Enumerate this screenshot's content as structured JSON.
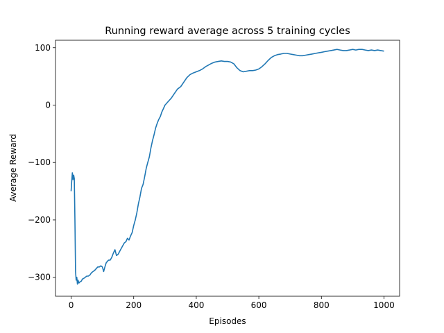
{
  "chart_data": {
    "type": "line",
    "title": "Running reward average across 5 training cycles",
    "xlabel": "Episodes",
    "ylabel": "Average Reward",
    "xlim": [
      -50,
      1050
    ],
    "ylim": [
      -333,
      113
    ],
    "xticks": [
      0,
      200,
      400,
      600,
      800,
      1000
    ],
    "yticks": [
      -300,
      -200,
      -100,
      0,
      100
    ],
    "grid": false,
    "legend": "none",
    "line_color": "#1f77b4",
    "series": [
      {
        "x": [
          0,
          2,
          4,
          6,
          8,
          10,
          12,
          14,
          16,
          18,
          20,
          22,
          25,
          28,
          32,
          36,
          40,
          45,
          50,
          55,
          60,
          65,
          70,
          75,
          80,
          85,
          90,
          95,
          100,
          104,
          108,
          112,
          116,
          120,
          125,
          130,
          135,
          140,
          145,
          150,
          155,
          160,
          165,
          170,
          175,
          180,
          185,
          190,
          195,
          200,
          205,
          210,
          215,
          220,
          225,
          230,
          235,
          240,
          245,
          250,
          255,
          260,
          265,
          270,
          275,
          280,
          285,
          290,
          295,
          300,
          305,
          310,
          320,
          330,
          340,
          350,
          360,
          370,
          380,
          390,
          400,
          410,
          420,
          430,
          440,
          450,
          460,
          470,
          480,
          490,
          500,
          510,
          520,
          530,
          540,
          550,
          560,
          570,
          580,
          590,
          600,
          610,
          620,
          630,
          640,
          650,
          660,
          670,
          680,
          690,
          700,
          710,
          720,
          730,
          740,
          750,
          760,
          770,
          780,
          790,
          800,
          810,
          820,
          830,
          840,
          850,
          860,
          870,
          880,
          890,
          900,
          910,
          920,
          930,
          940,
          950,
          960,
          970,
          980,
          990,
          1000
        ],
        "y": [
          -150,
          -132,
          -118,
          -130,
          -122,
          -128,
          -200,
          -290,
          -305,
          -300,
          -312,
          -305,
          -310,
          -308,
          -307,
          -303,
          -302,
          -300,
          -298,
          -298,
          -296,
          -292,
          -290,
          -288,
          -285,
          -282,
          -282,
          -280,
          -282,
          -290,
          -282,
          -275,
          -272,
          -270,
          -270,
          -265,
          -258,
          -252,
          -262,
          -260,
          -255,
          -250,
          -245,
          -240,
          -238,
          -232,
          -235,
          -228,
          -222,
          -210,
          -200,
          -188,
          -172,
          -160,
          -145,
          -138,
          -125,
          -110,
          -100,
          -90,
          -75,
          -62,
          -52,
          -40,
          -32,
          -25,
          -20,
          -12,
          -6,
          0,
          3,
          6,
          12,
          20,
          28,
          32,
          40,
          48,
          53,
          56,
          58,
          60,
          63,
          67,
          70,
          73,
          75,
          76,
          77,
          76,
          76,
          75,
          72,
          65,
          60,
          58,
          59,
          60,
          60,
          61,
          63,
          67,
          72,
          78,
          83,
          86,
          88,
          89,
          90,
          90,
          89,
          88,
          87,
          86,
          86,
          87,
          88,
          89,
          90,
          91,
          92,
          93,
          94,
          95,
          96,
          97,
          96,
          95,
          95,
          96,
          97,
          96,
          97,
          97,
          96,
          95,
          96,
          95,
          96,
          95,
          94
        ]
      }
    ]
  }
}
